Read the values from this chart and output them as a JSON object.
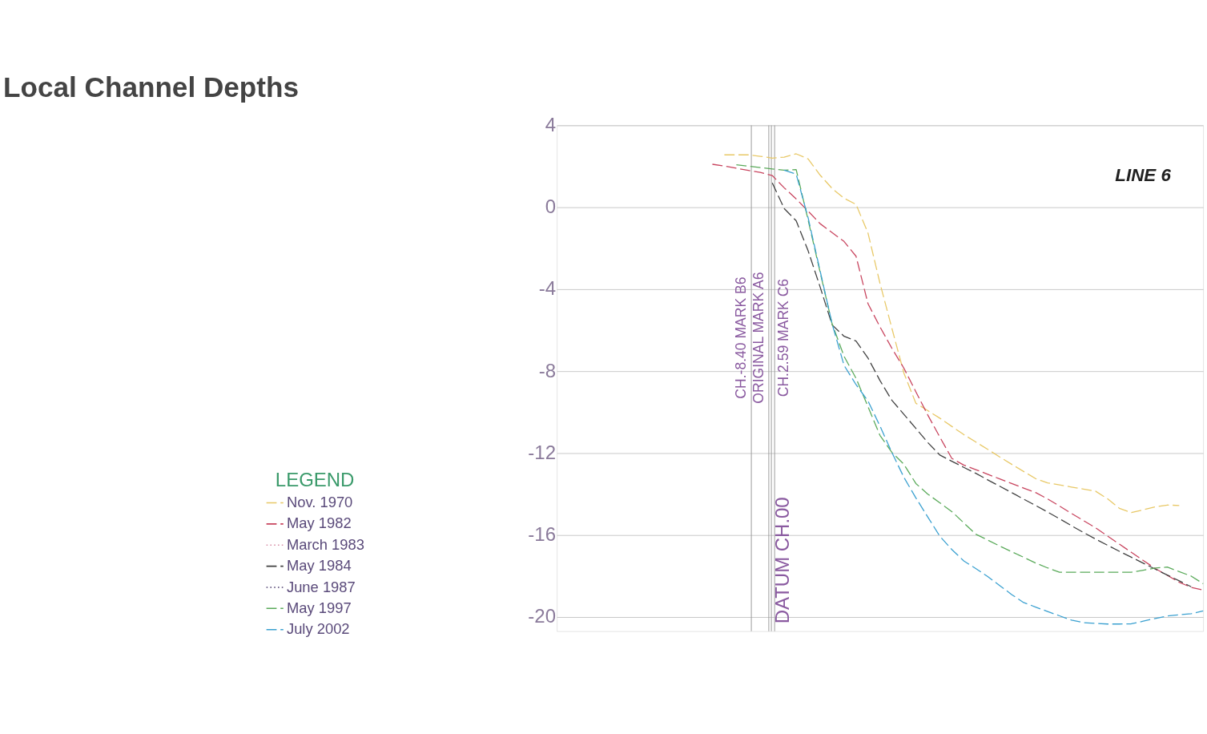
{
  "chart_data": {
    "type": "line",
    "title": "Local Channel Depths",
    "legend_title": "LEGEND",
    "annotations": [
      "LINE 6",
      "CH.-8.40 MARK B6",
      "ORIGINAL MARK A6",
      "CH.2.59 MARK C6",
      "DATUM CH.00"
    ],
    "categories": [
      null,
      null,
      null,
      null,
      null,
      null,
      null,
      null,
      null,
      null,
      null,
      null,
      null,
      null,
      null,
      null,
      null,
      null,
      null,
      null,
      null,
      null,
      null,
      null,
      null,
      null,
      null,
      null,
      null,
      null,
      null,
      null,
      null,
      null,
      null,
      null,
      null,
      null,
      null,
      null,
      null,
      null,
      null,
      null,
      null,
      null,
      null,
      null,
      null,
      null,
      null,
      null,
      null,
      null,
      null
    ],
    "ylim": [
      -20.7,
      4
    ],
    "yticks": [
      4,
      0,
      -4,
      -8,
      -12,
      -16,
      -20
    ],
    "tick_labels": "y",
    "grid": "y",
    "legend": "bottom left",
    "series": [
      {
        "name": "Nov. 1970",
        "color": "#e8c866",
        "line_style": "dashed",
        "values": [
          null,
          null,
          null,
          null,
          null,
          null,
          null,
          null,
          null,
          null,
          null,
          null,
          null,
          null,
          2.56,
          2.56,
          2.56,
          2.49,
          2.4,
          2.45,
          2.61,
          2.36,
          1.57,
          0.92,
          0.44,
          0.14,
          -1.26,
          -3.71,
          -5.92,
          -8.1,
          -9.57,
          -9.93,
          -10.3,
          -10.7,
          -11.1,
          -11.46,
          -11.82,
          -12.19,
          -12.55,
          -12.9,
          -13.25,
          -13.46,
          -13.56,
          -13.66,
          -13.76,
          -13.86,
          -14.23,
          -14.7,
          -14.91,
          -14.77,
          -14.63,
          -14.54,
          -14.56,
          null,
          null
        ]
      },
      {
        "name": "May 1982",
        "color": "#c8445e",
        "line_style": "dashed",
        "values": [
          null,
          null,
          null,
          null,
          null,
          null,
          null,
          null,
          null,
          null,
          null,
          null,
          null,
          2.1,
          2.01,
          1.91,
          1.8,
          1.7,
          1.55,
          0.95,
          0.41,
          -0.19,
          -0.8,
          -1.24,
          -1.67,
          -2.39,
          -4.71,
          -5.84,
          -6.89,
          -7.86,
          -9.01,
          -10.15,
          -11.22,
          -12.26,
          -12.59,
          -12.81,
          -13.04,
          -13.26,
          -13.49,
          -13.71,
          -13.93,
          -14.24,
          -14.59,
          -14.95,
          -15.3,
          -15.65,
          -16.05,
          -16.45,
          -16.85,
          -17.25,
          -17.64,
          -17.97,
          -18.31,
          -18.56,
          -18.69
        ]
      },
      {
        "name": "March 1983",
        "color": "#d890a8",
        "line_style": "dotted",
        "values": [
          null,
          null,
          null,
          null,
          null,
          null,
          null,
          null,
          null,
          null,
          null,
          null,
          null,
          null,
          null,
          null,
          null,
          null,
          null,
          null,
          null,
          null,
          null,
          null,
          null,
          null,
          null,
          null,
          null,
          null,
          null,
          null,
          null,
          null,
          null,
          null,
          null,
          null,
          null,
          null,
          null,
          null,
          null,
          null,
          null,
          null,
          null,
          null,
          null,
          null,
          null,
          null,
          null,
          null,
          null
        ]
      },
      {
        "name": "May 1984",
        "color": "#404040",
        "line_style": "dashed",
        "values": [
          null,
          null,
          null,
          null,
          null,
          null,
          null,
          null,
          null,
          null,
          null,
          null,
          null,
          null,
          null,
          null,
          null,
          null,
          1.19,
          -0.06,
          -0.66,
          -2.13,
          -3.89,
          -5.74,
          -6.3,
          -6.53,
          -7.36,
          -8.46,
          -9.43,
          -10.11,
          -10.8,
          -11.49,
          -12.1,
          -12.4,
          -12.7,
          -12.99,
          -13.31,
          -13.62,
          -13.93,
          -14.25,
          -14.56,
          -14.88,
          -15.21,
          -15.55,
          -15.88,
          -16.2,
          -16.5,
          -16.8,
          -17.09,
          -17.38,
          -17.67,
          -17.96,
          -18.24,
          -18.53,
          null
        ]
      },
      {
        "name": "June 1987",
        "color": "#504070",
        "line_style": "dotted",
        "values": [
          null,
          null,
          null,
          null,
          null,
          null,
          null,
          null,
          null,
          null,
          null,
          null,
          null,
          null,
          null,
          null,
          null,
          null,
          null,
          null,
          null,
          null,
          null,
          null,
          null,
          null,
          null,
          null,
          null,
          null,
          null,
          null,
          null,
          null,
          null,
          null,
          null,
          null,
          null,
          null,
          null,
          null,
          null,
          null,
          null,
          null,
          null,
          null,
          null,
          null,
          null,
          null,
          null,
          null,
          null
        ]
      },
      {
        "name": "May 1997",
        "color": "#5aaa5a",
        "line_style": "dashed",
        "values": [
          null,
          null,
          null,
          null,
          null,
          null,
          null,
          null,
          null,
          null,
          null,
          null,
          null,
          null,
          null,
          2.08,
          2.01,
          1.94,
          1.87,
          1.81,
          1.84,
          -0.63,
          -3.17,
          -5.69,
          -7.28,
          -8.35,
          -9.74,
          -11.14,
          -11.97,
          -12.55,
          -13.49,
          -14.01,
          -14.43,
          -14.86,
          -15.41,
          -15.96,
          -16.25,
          -16.54,
          -16.82,
          -17.09,
          -17.37,
          -17.61,
          -17.82,
          -17.82,
          -17.82,
          -17.82,
          -17.82,
          -17.82,
          -17.82,
          -17.72,
          -17.62,
          -17.57,
          -17.79,
          -18.01,
          -18.38
        ]
      },
      {
        "name": "July 2002",
        "color": "#3aa0d0",
        "line_style": "dashed",
        "values": [
          null,
          null,
          null,
          null,
          null,
          null,
          null,
          null,
          null,
          null,
          null,
          null,
          null,
          null,
          null,
          null,
          null,
          null,
          null,
          1.81,
          1.62,
          -0.52,
          -3.11,
          -5.69,
          -7.72,
          -8.66,
          -9.46,
          -10.68,
          -11.98,
          -13.19,
          -14.19,
          -15.13,
          -16.06,
          -16.71,
          -17.27,
          -17.64,
          -18.03,
          -18.47,
          -18.91,
          -19.3,
          -19.52,
          -19.74,
          -19.95,
          -20.16,
          -20.28,
          -20.32,
          -20.35,
          -20.35,
          -20.34,
          -20.21,
          -20.08,
          -19.96,
          -19.9,
          -19.85,
          -19.71
        ]
      }
    ]
  }
}
